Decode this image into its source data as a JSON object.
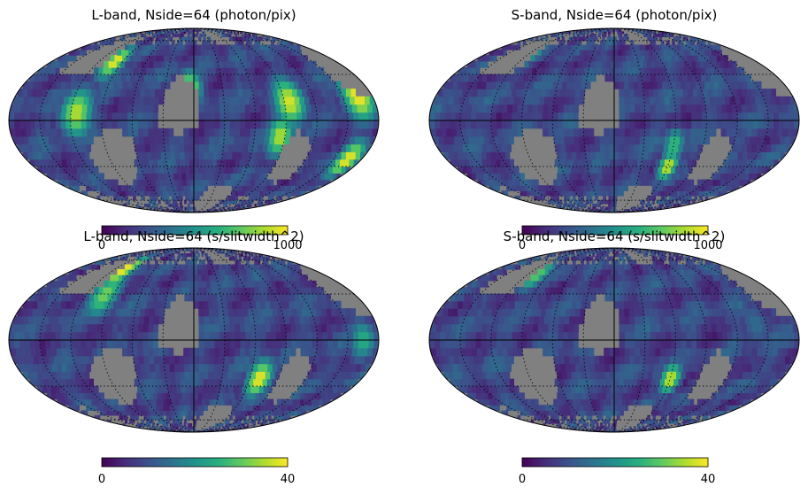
{
  "chart_data": [
    {
      "type": "heatmap",
      "projection": "mollweide",
      "title": "L-band, Nside=64 (photon/pix)",
      "colormap": "viridis",
      "missing_color": "#808080",
      "colorbar": {
        "min": 0,
        "max": 1000,
        "tick_labels": [
          "0",
          "1000"
        ]
      },
      "grid": true,
      "graticule_lines": "dotted",
      "features": [
        {
          "lon": 100,
          "lat": 40,
          "value": 1000,
          "spread": 10
        },
        {
          "lon": 115,
          "lat": 5,
          "value": 900,
          "spread": 12
        },
        {
          "lon": 5,
          "lat": 20,
          "value": 950,
          "spread": 10
        },
        {
          "lon": -95,
          "lat": 12,
          "value": 950,
          "spread": 12
        },
        {
          "lon": -85,
          "lat": -10,
          "value": 900,
          "spread": 10
        },
        {
          "lon": -165,
          "lat": 15,
          "value": 1000,
          "spread": 12
        },
        {
          "lon": -165,
          "lat": -25,
          "value": 1000,
          "spread": 10
        }
      ]
    },
    {
      "type": "heatmap",
      "projection": "mollweide",
      "title": "S-band,  Nside=64 (photon/pix)",
      "colormap": "viridis",
      "missing_color": "#808080",
      "colorbar": {
        "min": 0,
        "max": 1000,
        "tick_labels": [
          "0",
          "1000"
        ]
      },
      "grid": true,
      "graticule_lines": "dotted",
      "features": [
        {
          "lon": 115,
          "lat": 45,
          "value": 700,
          "spread": 9
        },
        {
          "lon": -60,
          "lat": -30,
          "value": 950,
          "spread": 8
        },
        {
          "lon": -60,
          "lat": -15,
          "value": 700,
          "spread": 8
        }
      ]
    },
    {
      "type": "heatmap",
      "projection": "mollweide",
      "title": "L-band, Nside=64 (s/slitwidth^2)",
      "colormap": "viridis",
      "missing_color": "#808080",
      "colorbar": {
        "min": 0,
        "max": 40,
        "tick_labels": [
          "0",
          "40"
        ]
      },
      "grid": true,
      "graticule_lines": "dotted",
      "features": [
        {
          "lon": 105,
          "lat": 50,
          "value": 40,
          "spread": 12
        },
        {
          "lon": 100,
          "lat": 30,
          "value": 32,
          "spread": 12
        },
        {
          "lon": -70,
          "lat": -25,
          "value": 40,
          "spread": 10
        },
        {
          "lon": -165,
          "lat": 0,
          "value": 25,
          "spread": 10
        }
      ]
    },
    {
      "type": "heatmap",
      "projection": "mollweide",
      "title": "S-band,  Nside=64 (s/slitwidth^2)",
      "colormap": "viridis",
      "missing_color": "#808080",
      "colorbar": {
        "min": 0,
        "max": 40,
        "tick_labels": [
          "0",
          "40"
        ]
      },
      "grid": true,
      "graticule_lines": "dotted",
      "features": [
        {
          "lon": 105,
          "lat": 45,
          "value": 30,
          "spread": 10
        },
        {
          "lon": -60,
          "lat": -25,
          "value": 38,
          "spread": 8
        },
        {
          "lon": -140,
          "lat": 10,
          "value": 14,
          "spread": 12
        }
      ]
    }
  ]
}
